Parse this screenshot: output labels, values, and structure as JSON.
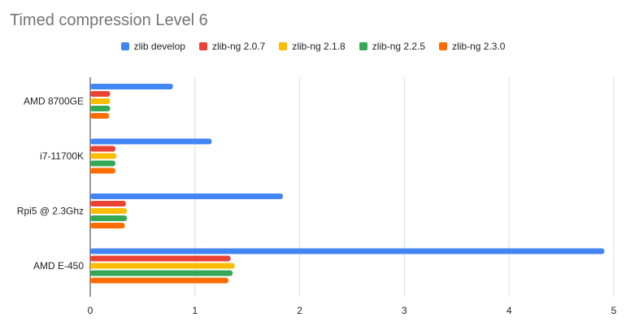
{
  "chart_data": {
    "type": "bar",
    "orientation": "horizontal",
    "title": "Timed compression Level 6",
    "categories": [
      "AMD 8700GE",
      "i7-11700K",
      "Rpi5 @ 2.3Ghz",
      "AMD E-450"
    ],
    "series": [
      {
        "name": "zlib develop",
        "color": "#4285f4",
        "values": [
          0.79,
          1.16,
          1.84,
          4.91
        ]
      },
      {
        "name": "zlib-ng 2.0.7",
        "color": "#ea4335",
        "values": [
          0.19,
          0.24,
          0.34,
          1.34
        ]
      },
      {
        "name": "zlib-ng 2.1.8",
        "color": "#fbbc04",
        "values": [
          0.19,
          0.25,
          0.35,
          1.38
        ]
      },
      {
        "name": "zlib-ng 2.2.5",
        "color": "#34a853",
        "values": [
          0.19,
          0.24,
          0.35,
          1.36
        ]
      },
      {
        "name": "zlib-ng 2.3.0",
        "color": "#ff6d01",
        "values": [
          0.18,
          0.24,
          0.33,
          1.32
        ]
      }
    ],
    "xticks": [
      "0",
      "1",
      "2",
      "3",
      "4",
      "5"
    ],
    "xlim": [
      0,
      5
    ],
    "grid": true,
    "legend": "top"
  }
}
